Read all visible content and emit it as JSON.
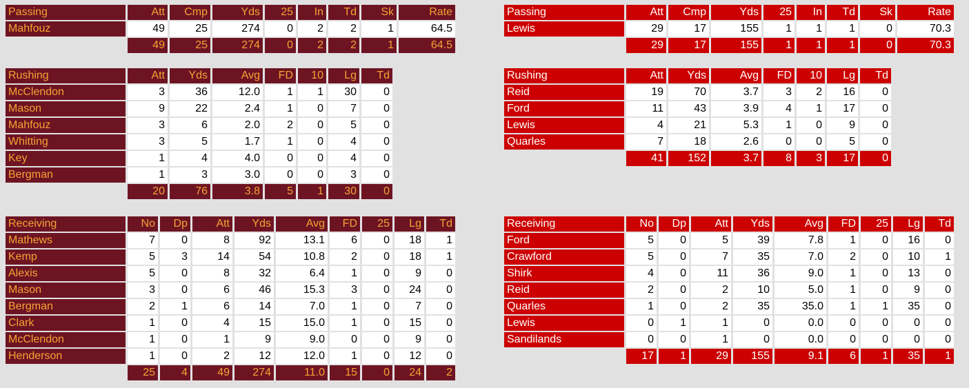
{
  "teams": [
    {
      "passing": {
        "header": [
          "Passing",
          "Att",
          "Cmp",
          "Yds",
          "25",
          "In",
          "Td",
          "Sk",
          "Rate"
        ],
        "rows": [
          [
            "Mahfouz",
            "49",
            "25",
            "274",
            "0",
            "2",
            "2",
            "1",
            "64.5"
          ]
        ],
        "total": [
          "49",
          "25",
          "274",
          "0",
          "2",
          "2",
          "1",
          "64.5"
        ]
      },
      "rushing": {
        "header": [
          "Rushing",
          "Att",
          "Yds",
          "Avg",
          "FD",
          "10",
          "Lg",
          "Td"
        ],
        "rows": [
          [
            "McClendon",
            "3",
            "36",
            "12.0",
            "1",
            "1",
            "30",
            "0"
          ],
          [
            "Mason",
            "9",
            "22",
            "2.4",
            "1",
            "0",
            "7",
            "0"
          ],
          [
            "Mahfouz",
            "3",
            "6",
            "2.0",
            "2",
            "0",
            "5",
            "0"
          ],
          [
            "Whitting",
            "3",
            "5",
            "1.7",
            "1",
            "0",
            "4",
            "0"
          ],
          [
            "Key",
            "1",
            "4",
            "4.0",
            "0",
            "0",
            "4",
            "0"
          ],
          [
            "Bergman",
            "1",
            "3",
            "3.0",
            "0",
            "0",
            "3",
            "0"
          ]
        ],
        "total": [
          "20",
          "76",
          "3.8",
          "5",
          "1",
          "30",
          "0"
        ]
      },
      "receiving": {
        "header": [
          "Receiving",
          "No",
          "Dp",
          "Att",
          "Yds",
          "Avg",
          "FD",
          "25",
          "Lg",
          "Td"
        ],
        "rows": [
          [
            "Mathews",
            "7",
            "0",
            "8",
            "92",
            "13.1",
            "6",
            "0",
            "18",
            "1"
          ],
          [
            "Kemp",
            "5",
            "3",
            "14",
            "54",
            "10.8",
            "2",
            "0",
            "18",
            "1"
          ],
          [
            "Alexis",
            "5",
            "0",
            "8",
            "32",
            "6.4",
            "1",
            "0",
            "9",
            "0"
          ],
          [
            "Mason",
            "3",
            "0",
            "6",
            "46",
            "15.3",
            "3",
            "0",
            "24",
            "0"
          ],
          [
            "Bergman",
            "2",
            "1",
            "6",
            "14",
            "7.0",
            "1",
            "0",
            "7",
            "0"
          ],
          [
            "Clark",
            "1",
            "0",
            "4",
            "15",
            "15.0",
            "1",
            "0",
            "15",
            "0"
          ],
          [
            "McClendon",
            "1",
            "0",
            "1",
            "9",
            "9.0",
            "0",
            "0",
            "9",
            "0"
          ],
          [
            "Henderson",
            "1",
            "0",
            "2",
            "12",
            "12.0",
            "1",
            "0",
            "12",
            "0"
          ]
        ],
        "total": [
          "25",
          "4",
          "49",
          "274",
          "11.0",
          "15",
          "0",
          "24",
          "2"
        ]
      }
    },
    {
      "passing": {
        "header": [
          "Passing",
          "Att",
          "Cmp",
          "Yds",
          "25",
          "In",
          "Td",
          "Sk",
          "Rate"
        ],
        "rows": [
          [
            "Lewis",
            "29",
            "17",
            "155",
            "1",
            "1",
            "1",
            "0",
            "70.3"
          ]
        ],
        "total": [
          "29",
          "17",
          "155",
          "1",
          "1",
          "1",
          "0",
          "70.3"
        ]
      },
      "rushing": {
        "header": [
          "Rushing",
          "Att",
          "Yds",
          "Avg",
          "FD",
          "10",
          "Lg",
          "Td"
        ],
        "rows": [
          [
            "Reid",
            "19",
            "70",
            "3.7",
            "3",
            "2",
            "16",
            "0"
          ],
          [
            "Ford",
            "11",
            "43",
            "3.9",
            "4",
            "1",
            "17",
            "0"
          ],
          [
            "Lewis",
            "4",
            "21",
            "5.3",
            "1",
            "0",
            "9",
            "0"
          ],
          [
            "Quarles",
            "7",
            "18",
            "2.6",
            "0",
            "0",
            "5",
            "0"
          ]
        ],
        "total": [
          "41",
          "152",
          "3.7",
          "8",
          "3",
          "17",
          "0"
        ]
      },
      "receiving": {
        "header": [
          "Receiving",
          "No",
          "Dp",
          "Att",
          "Yds",
          "Avg",
          "FD",
          "25",
          "Lg",
          "Td"
        ],
        "rows": [
          [
            "Ford",
            "5",
            "0",
            "5",
            "39",
            "7.8",
            "1",
            "0",
            "16",
            "0"
          ],
          [
            "Crawford",
            "5",
            "0",
            "7",
            "35",
            "7.0",
            "2",
            "0",
            "10",
            "1"
          ],
          [
            "Shirk",
            "4",
            "0",
            "11",
            "36",
            "9.0",
            "1",
            "0",
            "13",
            "0"
          ],
          [
            "Reid",
            "2",
            "0",
            "2",
            "10",
            "5.0",
            "1",
            "0",
            "9",
            "0"
          ],
          [
            "Quarles",
            "1",
            "0",
            "2",
            "35",
            "35.0",
            "1",
            "1",
            "35",
            "0"
          ],
          [
            "Lewis",
            "0",
            "1",
            "1",
            "0",
            "0.0",
            "0",
            "0",
            "0",
            "0"
          ],
          [
            "Sandilands",
            "0",
            "0",
            "1",
            "0",
            "0.0",
            "0",
            "0",
            "0",
            "0"
          ]
        ],
        "total": [
          "17",
          "1",
          "29",
          "155",
          "9.1",
          "6",
          "1",
          "35",
          "1"
        ]
      }
    }
  ]
}
